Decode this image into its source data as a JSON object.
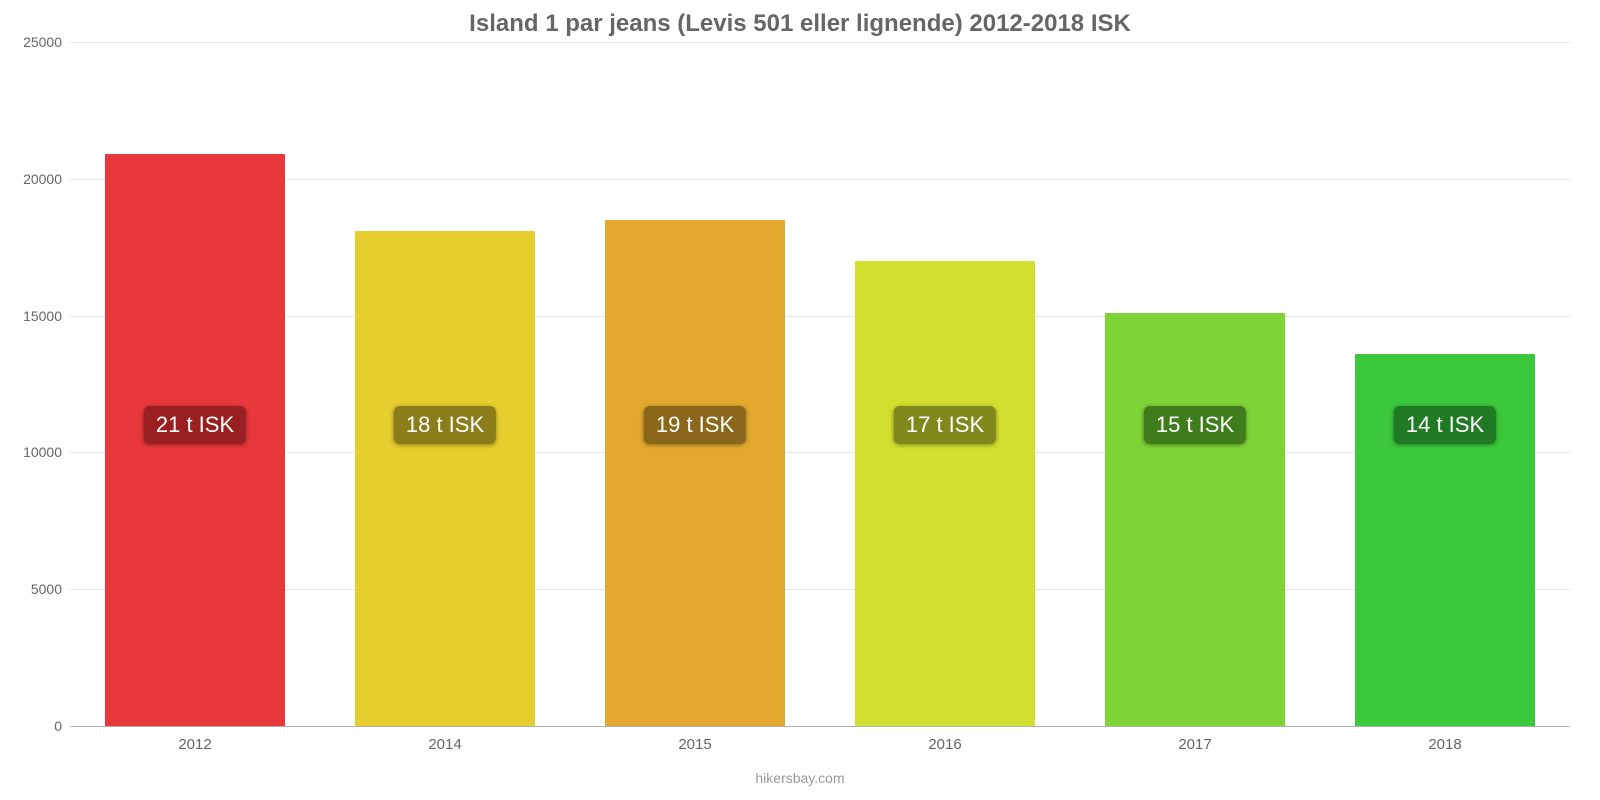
{
  "chart": {
    "type": "bar",
    "title": "Island 1 par jeans (Levis 501 eller lignende) 2012-2018 ISK",
    "title_color": "#666666",
    "title_fontsize": 24,
    "background_color": "#ffffff",
    "grid_color": "#e6e6e6",
    "axis_line_color": "#b0b0b0",
    "axis_label_color": "#666666",
    "axis_label_fontsize": 14,
    "bar_width": 0.72,
    "ylim": [
      0,
      25000
    ],
    "yticks": [
      0,
      5000,
      10000,
      15000,
      20000,
      25000
    ],
    "categories": [
      "2012",
      "2014",
      "2015",
      "2016",
      "2017",
      "2018"
    ],
    "values": [
      20900,
      18100,
      18500,
      17000,
      15100,
      13600
    ],
    "bar_colors": [
      "#e8383b",
      "#e6ce2f",
      "#e2a92e",
      "#d2df2f",
      "#7ed336",
      "#3bc83b"
    ],
    "data_labels": [
      "21 t ISK",
      "18 t ISK",
      "19 t ISK",
      "17 t ISK",
      "15 t ISK",
      "14 t ISK"
    ],
    "data_label_bg": [
      "#9a1f21",
      "#8b7d1a",
      "#8a671a",
      "#80881b",
      "#3f7d1c",
      "#1f7a23"
    ],
    "data_label_color": "#ffffff",
    "data_label_fontsize": 22,
    "footer": "hikersbay.com",
    "footer_color": "#999999"
  }
}
